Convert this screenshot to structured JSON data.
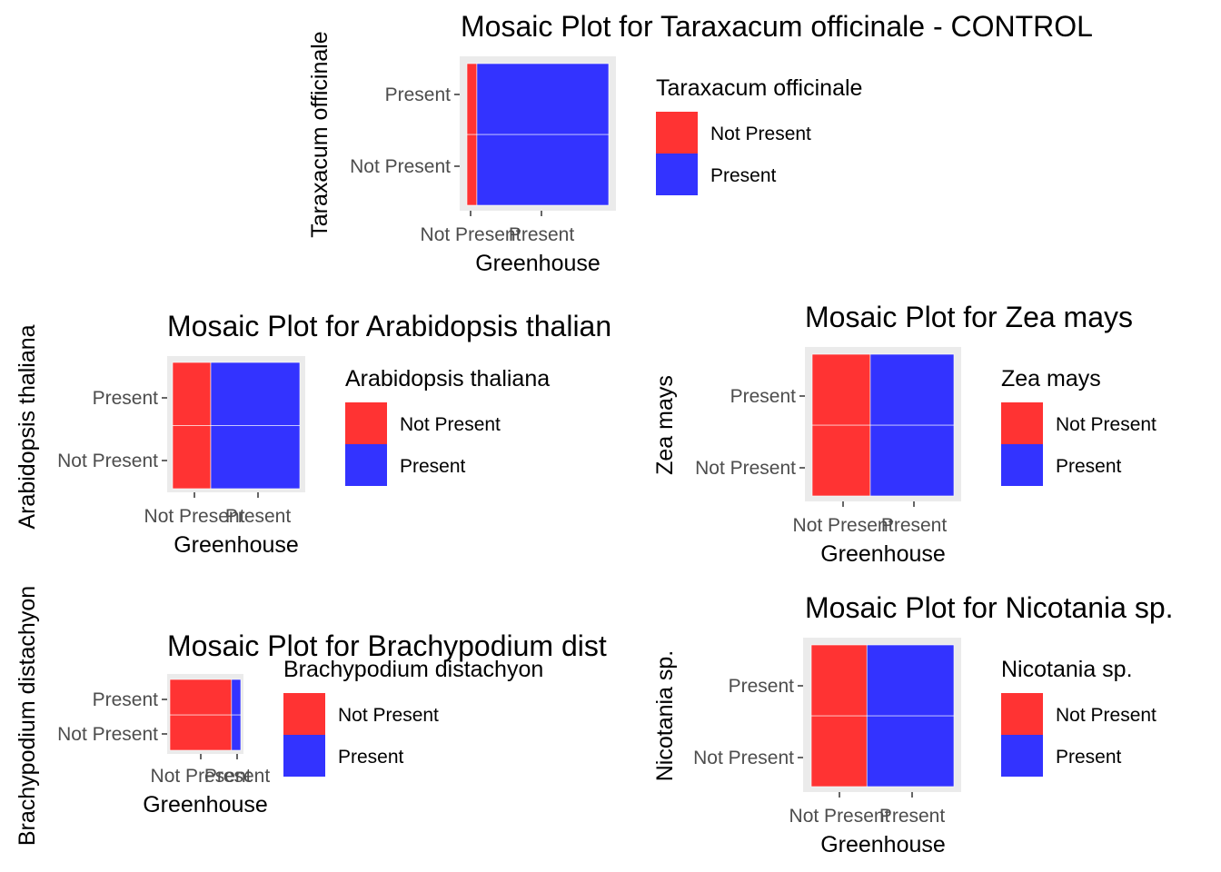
{
  "colors": {
    "not_present": "#ff3333",
    "present": "#3333ff",
    "panel_bg": "#ebebeb",
    "tick_text": "#4d4d4d"
  },
  "chart_data": [
    {
      "type": "mosaic",
      "title": "Mosaic Plot for Taraxacum officinale - CONTROL",
      "xlabel": "Greenhouse",
      "ylabel": "Taraxacum officinale",
      "x_categories": [
        "Not Present",
        "Present"
      ],
      "y_categories": [
        "Not Present",
        "Present"
      ],
      "x_shares": [
        0.07,
        0.93
      ],
      "y_split": [
        0.5,
        0.5
      ],
      "legend_title": "Taraxacum officinale",
      "legend_labels": [
        "Not Present",
        "Present"
      ]
    },
    {
      "type": "mosaic",
      "title": "Mosaic Plot for Arabidopsis thalian",
      "xlabel": "Greenhouse",
      "ylabel": "Arabidopsis thaliana",
      "x_categories": [
        "Not Present",
        "Present"
      ],
      "y_categories": [
        "Not Present",
        "Present"
      ],
      "x_shares": [
        0.3,
        0.7
      ],
      "y_split": [
        0.5,
        0.5
      ],
      "legend_title": "Arabidopsis thaliana",
      "legend_labels": [
        "Not Present",
        "Present"
      ]
    },
    {
      "type": "mosaic",
      "title": "Mosaic Plot for Zea mays",
      "xlabel": "Greenhouse",
      "ylabel": "Zea mays",
      "x_categories": [
        "Not Present",
        "Present"
      ],
      "y_categories": [
        "Not Present",
        "Present"
      ],
      "x_shares": [
        0.41,
        0.59
      ],
      "y_split": [
        0.5,
        0.5
      ],
      "legend_title": "Zea mays",
      "legend_labels": [
        "Not Present",
        "Present"
      ]
    },
    {
      "type": "mosaic",
      "title": "Mosaic Plot for Brachypodium dist",
      "xlabel": "Greenhouse",
      "ylabel": "Brachypodium distachyon",
      "x_categories": [
        "Not Present",
        "Present"
      ],
      "y_categories": [
        "Not Present",
        "Present"
      ],
      "x_shares": [
        0.87,
        0.13
      ],
      "y_split": [
        0.5,
        0.5
      ],
      "legend_title": "Brachypodium distachyon",
      "legend_labels": [
        "Not Present",
        "Present"
      ]
    },
    {
      "type": "mosaic",
      "title": "Mosaic Plot for Nicotania sp.",
      "xlabel": "Greenhouse",
      "ylabel": "Nicotania sp.",
      "x_categories": [
        "Not Present",
        "Present"
      ],
      "y_categories": [
        "Not Present",
        "Present"
      ],
      "x_shares": [
        0.39,
        0.61
      ],
      "y_split": [
        0.5,
        0.5
      ],
      "legend_title": "Nicotania sp.",
      "legend_labels": [
        "Not Present",
        "Present"
      ]
    }
  ]
}
